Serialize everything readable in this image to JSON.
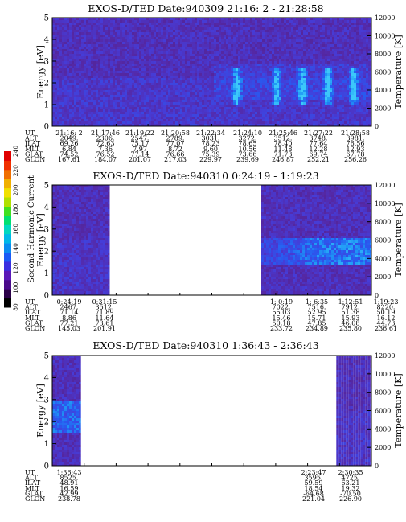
{
  "instrument": "EXOS-D/TED",
  "colorbar": {
    "label": "Second Harmonic Current",
    "ticks": [
      "80",
      "100",
      "120",
      "140",
      "160",
      "180",
      "200",
      "220",
      "240"
    ]
  },
  "chart_data": [
    {
      "type": "heatmap",
      "title": "EXOS-D/TED   Date:940309  21:16: 2 - 21:28:58",
      "ylabel": "Energy [eV]",
      "y2label": "Temperature [K]",
      "ylim": [
        0,
        5
      ],
      "y2lim": [
        0,
        12000
      ],
      "yticks": [
        "0",
        "1",
        "2",
        "3",
        "4",
        "5"
      ],
      "y2ticks": [
        "0",
        "2000",
        "4000",
        "6000",
        "8000",
        "10000",
        "12000"
      ],
      "orbit_rows": [
        "UT",
        "ALT",
        "ILAT",
        "MLT",
        "GLAT",
        "GLON"
      ],
      "orbit": [
        [
          "21:16: 2",
          "2049.",
          "69.26",
          "6.84",
          "74.52",
          "167.61"
        ],
        [
          "21:17:46",
          "2306.",
          "72.63",
          "7.36",
          "76.52",
          "184.07"
        ],
        [
          "21:19:22",
          "2547.",
          "75.17",
          "7.97",
          "77.14",
          "201.07"
        ],
        [
          "21:20:58",
          "2789.",
          "77.07",
          "8.72",
          "76.66",
          "217.03"
        ],
        [
          "21:22:34",
          "3031.",
          "78.23",
          "9.60",
          "75.39",
          "229.97"
        ],
        [
          "21:24:10",
          "3272.",
          "78.65",
          "10.56",
          "73.66",
          "239.69"
        ],
        [
          "21:25:46",
          "3512.",
          "78.40",
          "11.48",
          "71.73",
          "246.87"
        ],
        [
          "21:27:22",
          "3748.",
          "77.64",
          "12.28",
          "69.74",
          "252.21"
        ],
        [
          "21:28:58",
          "3981.",
          "76.56",
          "12.93",
          "67.78",
          "256.26"
        ]
      ],
      "data_coverage": [
        [
          0,
          1
        ]
      ]
    },
    {
      "type": "heatmap",
      "title": "EXOS-D/TED   Date:940310  0:24:19 - 1:19:23",
      "ylabel": "Energy [eV]",
      "y2label": "Temperature [K]",
      "ylim": [
        0,
        5
      ],
      "y2lim": [
        0,
        12000
      ],
      "yticks": [
        "0",
        "1",
        "2",
        "3",
        "4",
        "5"
      ],
      "y2ticks": [
        "0",
        "2000",
        "4000",
        "6000",
        "8000",
        "10000",
        "12000"
      ],
      "orbit_rows": [
        "UT",
        "ALT",
        "ILAT",
        "MLT",
        "GLAT",
        "GLON"
      ],
      "orbit": [
        [
          "0:24:19",
          "2467.",
          "71.14",
          "8.86",
          "77.21",
          "145.03"
        ],
        [
          "0:31:15",
          "3512.",
          "71.89",
          "11.64",
          "73.61",
          "201.91"
        ],
        [
          "1: 0:19",
          "7022.",
          "55.03",
          "15.46",
          "50.18",
          "233.72"
        ],
        [
          "1: 6:35",
          "7516.",
          "52.95",
          "15.71",
          "47.85",
          "234.89"
        ],
        [
          "1:12:51",
          "7912.",
          "51.38",
          "15.93",
          "46.08",
          "235.80"
        ],
        [
          "1:19:23",
          "8220.",
          "50.19",
          "16.12",
          "44.73",
          "236.61"
        ]
      ],
      "data_coverage": [
        [
          0,
          0.18
        ],
        [
          0.655,
          1
        ]
      ]
    },
    {
      "type": "heatmap",
      "title": "EXOS-D/TED   Date:940310  1:36:43 - 2:36:43",
      "ylabel": "Energy [eV]",
      "y2label": "Temperature [K]",
      "ylim": [
        0,
        5
      ],
      "y2lim": [
        0,
        12000
      ],
      "yticks": [
        "0",
        "1",
        "2",
        "3",
        "4",
        "5"
      ],
      "y2ticks": [
        "0",
        "2000",
        "4000",
        "6000",
        "8000",
        "10000",
        "12000"
      ],
      "orbit_rows": [
        "UT",
        "ALT",
        "ILAT",
        "MLT",
        "GLAT",
        "GLON"
      ],
      "orbit": [
        [
          "1:36:43",
          "8525.",
          "48.91",
          "16.59",
          "42.99",
          "238.78"
        ],
        [
          "2:23:47",
          "3595.",
          "59.59",
          "18.54",
          "-64.68",
          "221.04"
        ],
        [
          "2:30:35",
          "4725.",
          "63.21",
          "19.32",
          "-70.50",
          "226.90"
        ]
      ],
      "data_coverage": [
        [
          0,
          0.09
        ],
        [
          0.89,
          1
        ]
      ]
    }
  ]
}
